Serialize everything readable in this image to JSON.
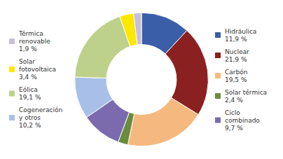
{
  "chart_data": {
    "type": "pie",
    "categories": [
      "Hidráulica",
      "Nuclear",
      "Carbón",
      "Solar térmica",
      "Ciclo\ncombinado",
      "Cogeneración\ny otros",
      "Eólica",
      "Solar\nfotovoltaica",
      "Térmica\nrenovable"
    ],
    "values": [
      11.9,
      21.9,
      19.5,
      2.4,
      9.7,
      10.2,
      19.1,
      3.4,
      1.9
    ],
    "value_labels": [
      "11,9 %",
      "21,9 %",
      "19,5 %",
      "2,4 %",
      "9,7 %",
      "10,2 %",
      "19,1 %",
      "3,4 %",
      "1,9 %"
    ],
    "colors": [
      "#3A5EA8",
      "#8B2020",
      "#F5B97F",
      "#6B8C3E",
      "#7B6BAE",
      "#A8C0E8",
      "#BDD18A",
      "#FFE800",
      "#C8C0D8"
    ],
    "legend": "sides",
    "data_labels": false
  }
}
